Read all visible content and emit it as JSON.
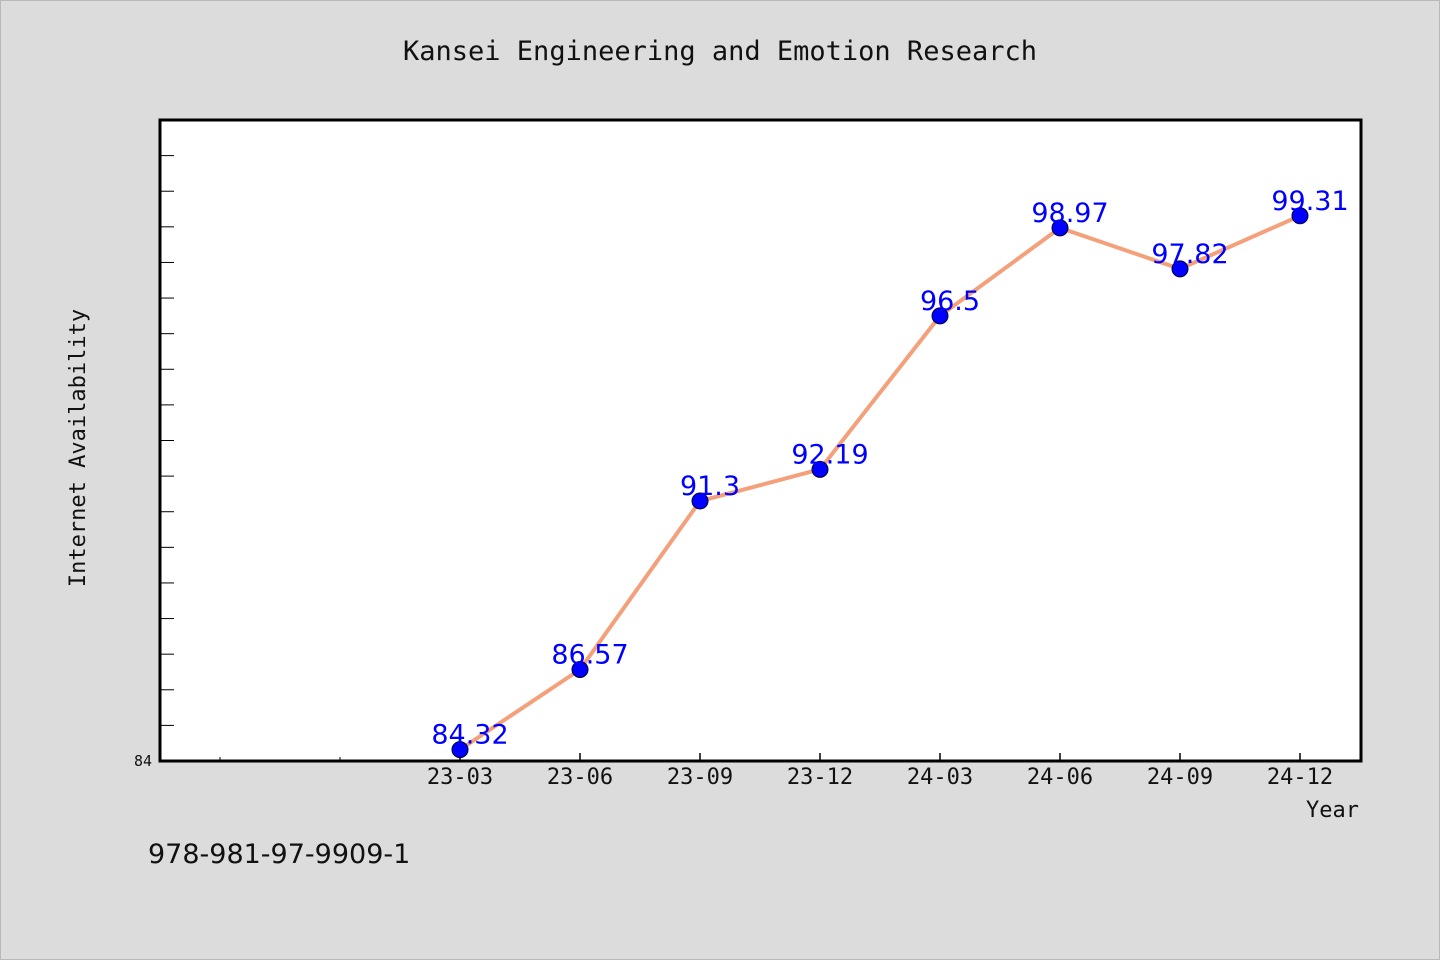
{
  "footnote": "978-981-97-9909-1",
  "colors": {
    "background": "#dcdcdc",
    "plot_background": "#ffffff",
    "line": "#f4a07a",
    "marker": "#0000ff",
    "data_label": "#0000ff"
  },
  "chart_data": {
    "type": "line",
    "title": "Kansei Engineering and Emotion Research",
    "xlabel": "Year",
    "ylabel": "Internet Availability",
    "categories": [
      "23-03",
      "23-06",
      "23-09",
      "23-12",
      "24-03",
      "24-06",
      "24-09",
      "24-12"
    ],
    "series": [
      {
        "values": [
          84.32,
          86.57,
          91.3,
          92.19,
          96.5,
          98.97,
          97.82,
          99.31
        ],
        "labels": [
          "84.32",
          "86.57",
          "91.3",
          "92.19",
          "96.5",
          "98.97",
          "97.82",
          "99.31"
        ],
        "marker": "circle"
      }
    ],
    "ylim": [
      84,
      102
    ],
    "y_tick_labels": [
      "84"
    ],
    "y_minor_step": 1,
    "x_slots_before_first": 2,
    "grid": false,
    "legend": "none"
  }
}
